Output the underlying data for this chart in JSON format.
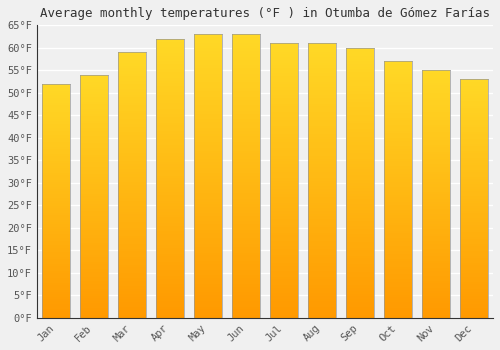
{
  "title": "Average monthly temperatures (°F ) in Otumba de Gómez Farías",
  "months": [
    "Jan",
    "Feb",
    "Mar",
    "Apr",
    "May",
    "Jun",
    "Jul",
    "Aug",
    "Sep",
    "Oct",
    "Nov",
    "Dec"
  ],
  "values": [
    52,
    54,
    59,
    62,
    63,
    63,
    61,
    61,
    60,
    57,
    55,
    53
  ],
  "bar_color_main": "#FFA500",
  "bar_color_light": "#FFD040",
  "ylim": [
    0,
    65
  ],
  "yticks": [
    0,
    5,
    10,
    15,
    20,
    25,
    30,
    35,
    40,
    45,
    50,
    55,
    60,
    65
  ],
  "background_color": "#f0f0f0",
  "grid_color": "#ffffff",
  "title_fontsize": 9,
  "tick_fontsize": 7.5,
  "font_family": "monospace",
  "bar_edge_color": "#888888",
  "bar_width": 0.75
}
